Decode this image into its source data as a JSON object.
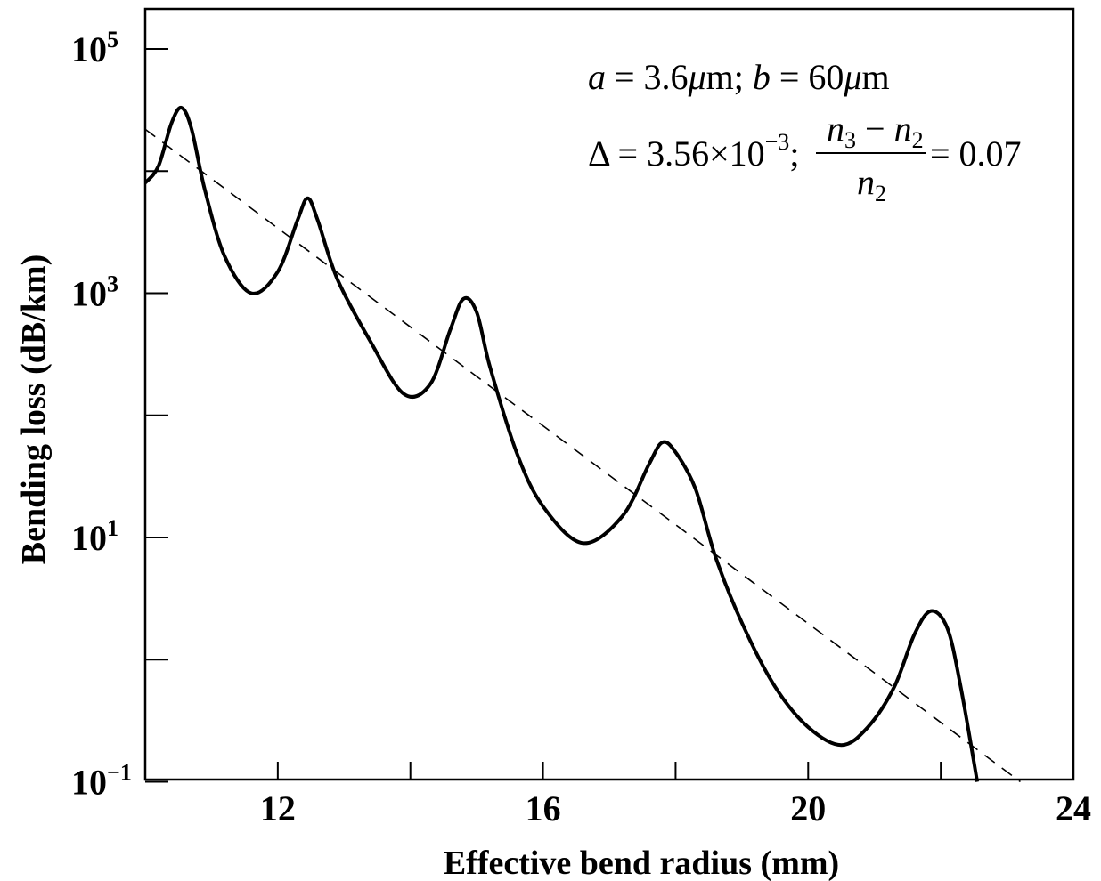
{
  "chart_data": {
    "type": "line",
    "xlabel": "Effective bend radius (mm)",
    "ylabel": "Bending loss (dB/km)",
    "xlim": [
      10,
      24
    ],
    "ylim": [
      0.1,
      200000
    ],
    "yscale": "log",
    "x_ticks": [
      "12",
      "16",
      "20",
      "24"
    ],
    "y_ticks": [
      {
        "base": "10",
        "exp": "5"
      },
      {
        "base": "10",
        "exp": "3"
      },
      {
        "base": "10",
        "exp": "1"
      },
      {
        "base": "10",
        "exp": "−1"
      }
    ],
    "grid": false,
    "series": [
      {
        "style": "solid",
        "x": [
          10,
          10.2,
          10.4,
          10.55,
          10.7,
          10.9,
          11.2,
          11.6,
          12.0,
          12.3,
          12.45,
          12.6,
          12.9,
          13.4,
          13.9,
          14.3,
          14.6,
          14.8,
          15.0,
          15.2,
          15.6,
          16.0,
          16.6,
          17.2,
          17.6,
          17.8,
          18.0,
          18.3,
          18.6,
          19.0,
          19.5,
          20.0,
          20.5,
          20.9,
          21.3,
          21.6,
          21.85,
          22.1,
          22.3,
          22.55
        ],
        "y": [
          8000,
          11000,
          25000,
          33000,
          22000,
          7000,
          2000,
          1000,
          1500,
          4000,
          6000,
          4000,
          1300,
          400,
          150,
          180,
          500,
          900,
          700,
          250,
          50,
          18,
          9,
          15,
          40,
          60,
          50,
          25,
          7,
          2,
          0.6,
          0.28,
          0.2,
          0.28,
          0.6,
          1.6,
          2.5,
          1.8,
          0.6,
          0.1
        ]
      },
      {
        "style": "dashed",
        "x": [
          10,
          23.2
        ],
        "y": [
          22000,
          0.1
        ]
      }
    ],
    "annotations": {
      "line1": {
        "a": "a",
        "eq1": " = 3.6",
        "mu1": "μ",
        "m1": "m; ",
        "b": "b",
        "eq2": " = 60",
        "mu2": "μ",
        "m2": "m"
      },
      "line2": {
        "delta": "Δ = 3.56×10",
        "exp": "−3",
        "sep": ";",
        "num_n3": "n",
        "num_s3": "3",
        "num_minus": " − ",
        "num_n2": "n",
        "num_s2": "2",
        "den_n": "n",
        "den_s": "2",
        "tail": "= 0.07"
      }
    }
  }
}
